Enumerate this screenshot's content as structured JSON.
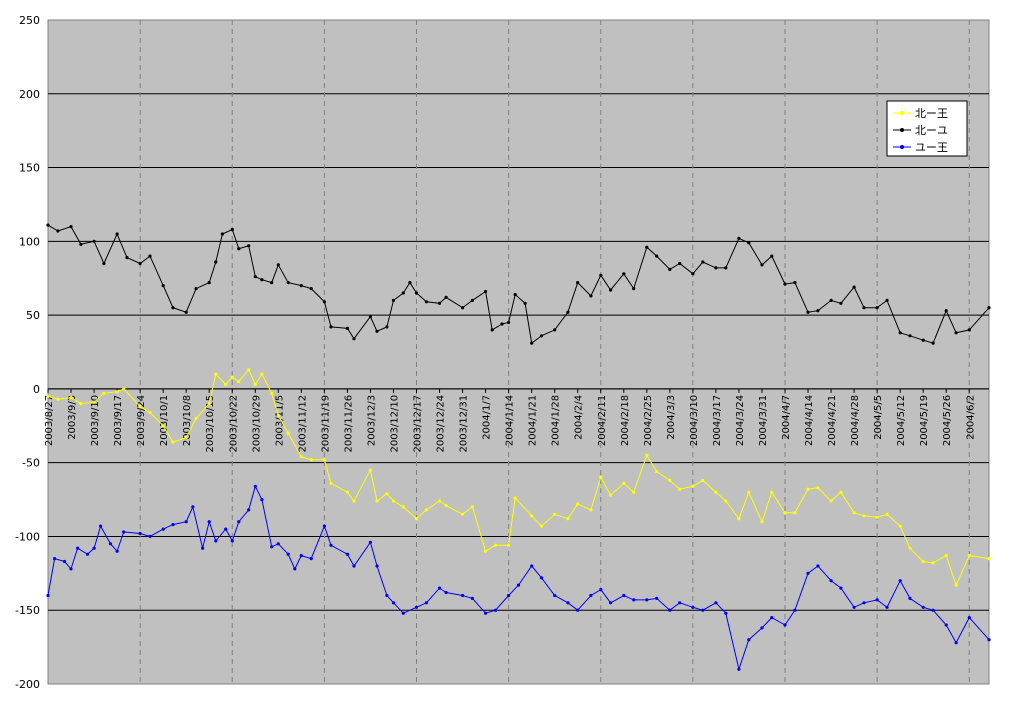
{
  "chart_data": {
    "type": "line",
    "title": "",
    "xlabel": "",
    "ylabel": "",
    "ylim": [
      -200,
      250
    ],
    "yticks": [
      250,
      200,
      150,
      100,
      50,
      0,
      -50,
      -100,
      -150,
      -200
    ],
    "grid": true,
    "legend_position": "top-right",
    "x_labels": [
      "2003/8/27",
      "2003/9/3",
      "2003/9/10",
      "2003/9/17",
      "2003/9/24",
      "2003/10/1",
      "2003/10/8",
      "2003/10/15",
      "2003/10/22",
      "2003/10/29",
      "2003/11/5",
      "2003/11/12",
      "2003/11/19",
      "2003/11/26",
      "2003/12/3",
      "2003/12/10",
      "2003/12/17",
      "2003/12/24",
      "2003/12/31",
      "2004/1/7",
      "2004/1/14",
      "2004/1/21",
      "2004/1/28",
      "2004/2/4",
      "2004/2/11",
      "2004/2/18",
      "2004/2/25",
      "2004/3/3",
      "2004/3/10",
      "2004/3/17",
      "2004/3/24",
      "2004/3/31",
      "2004/4/7",
      "2004/4/14",
      "2004/4/21",
      "2004/4/28",
      "2004/5/5",
      "2004/5/12",
      "2004/5/19",
      "2004/5/26",
      "2004/6/2"
    ],
    "x_start": "2003/8/27",
    "x_end": "2004/6/8",
    "series": [
      {
        "name": "北ー王",
        "color": "#ffff00",
        "points": [
          [
            "2003/8/27",
            -5
          ],
          [
            "2003/8/30",
            -7
          ],
          [
            "2003/9/3",
            -6
          ],
          [
            "2003/9/6",
            -10
          ],
          [
            "2003/9/10",
            -9
          ],
          [
            "2003/9/13",
            -3
          ],
          [
            "2003/9/17",
            -2
          ],
          [
            "2003/9/19",
            0
          ],
          [
            "2003/9/24",
            -12
          ],
          [
            "2003/9/27",
            -16
          ],
          [
            "2003/10/1",
            -25
          ],
          [
            "2003/10/4",
            -36
          ],
          [
            "2003/10/8",
            -33
          ],
          [
            "2003/10/11",
            -20
          ],
          [
            "2003/10/15",
            -10
          ],
          [
            "2003/10/17",
            10
          ],
          [
            "2003/10/20",
            3
          ],
          [
            "2003/10/22",
            8
          ],
          [
            "2003/10/24",
            5
          ],
          [
            "2003/10/27",
            13
          ],
          [
            "2003/10/29",
            3
          ],
          [
            "2003/10/31",
            10
          ],
          [
            "2003/11/3",
            -3
          ],
          [
            "2003/11/5",
            -18
          ],
          [
            "2003/11/8",
            -30
          ],
          [
            "2003/11/12",
            -46
          ],
          [
            "2003/11/15",
            -48
          ],
          [
            "2003/11/19",
            -48
          ],
          [
            "2003/11/21",
            -64
          ],
          [
            "2003/11/26",
            -70
          ],
          [
            "2003/11/28",
            -76
          ],
          [
            "2003/12/3",
            -55
          ],
          [
            "2003/12/5",
            -76
          ],
          [
            "2003/12/8",
            -71
          ],
          [
            "2003/12/10",
            -76
          ],
          [
            "2003/12/13",
            -80
          ],
          [
            "2003/12/17",
            -88
          ],
          [
            "2003/12/20",
            -82
          ],
          [
            "2003/12/24",
            -76
          ],
          [
            "2003/12/26",
            -79
          ],
          [
            "2003/12/31",
            -85
          ],
          [
            "2004/1/3",
            -80
          ],
          [
            "2004/1/7",
            -110
          ],
          [
            "2004/1/10",
            -106
          ],
          [
            "2004/1/14",
            -106
          ],
          [
            "2004/1/16",
            -74
          ],
          [
            "2004/1/21",
            -86
          ],
          [
            "2004/1/24",
            -93
          ],
          [
            "2004/1/28",
            -85
          ],
          [
            "2004/2/1",
            -88
          ],
          [
            "2004/2/4",
            -78
          ],
          [
            "2004/2/8",
            -82
          ],
          [
            "2004/2/11",
            -60
          ],
          [
            "2004/2/14",
            -72
          ],
          [
            "2004/2/18",
            -64
          ],
          [
            "2004/2/21",
            -70
          ],
          [
            "2004/2/25",
            -45
          ],
          [
            "2004/2/28",
            -56
          ],
          [
            "2004/3/3",
            -62
          ],
          [
            "2004/3/6",
            -68
          ],
          [
            "2004/3/10",
            -66
          ],
          [
            "2004/3/13",
            -62
          ],
          [
            "2004/3/17",
            -70
          ],
          [
            "2004/3/20",
            -76
          ],
          [
            "2004/3/24",
            -88
          ],
          [
            "2004/3/27",
            -70
          ],
          [
            "2004/3/31",
            -90
          ],
          [
            "2004/4/3",
            -70
          ],
          [
            "2004/4/7",
            -84
          ],
          [
            "2004/4/10",
            -84
          ],
          [
            "2004/4/14",
            -68
          ],
          [
            "2004/4/17",
            -67
          ],
          [
            "2004/4/21",
            -76
          ],
          [
            "2004/4/24",
            -70
          ],
          [
            "2004/4/28",
            -84
          ],
          [
            "2004/5/1",
            -86
          ],
          [
            "2004/5/5",
            -87
          ],
          [
            "2004/5/8",
            -85
          ],
          [
            "2004/5/12",
            -93
          ],
          [
            "2004/5/15",
            -108
          ],
          [
            "2004/5/19",
            -117
          ],
          [
            "2004/5/22",
            -118
          ],
          [
            "2004/5/26",
            -113
          ],
          [
            "2004/5/29",
            -133
          ],
          [
            "2004/6/2",
            -113
          ],
          [
            "2004/6/8",
            -115
          ]
        ]
      },
      {
        "name": "北ーユ",
        "color": "#000000",
        "points": [
          [
            "2003/8/27",
            111
          ],
          [
            "2003/8/30",
            107
          ],
          [
            "2003/9/3",
            110
          ],
          [
            "2003/9/6",
            98
          ],
          [
            "2003/9/10",
            100
          ],
          [
            "2003/9/13",
            85
          ],
          [
            "2003/9/17",
            105
          ],
          [
            "2003/9/20",
            89
          ],
          [
            "2003/9/24",
            85
          ],
          [
            "2003/9/27",
            90
          ],
          [
            "2003/10/1",
            70
          ],
          [
            "2003/10/4",
            55
          ],
          [
            "2003/10/8",
            52
          ],
          [
            "2003/10/11",
            68
          ],
          [
            "2003/10/15",
            72
          ],
          [
            "2003/10/17",
            86
          ],
          [
            "2003/10/19",
            105
          ],
          [
            "2003/10/22",
            108
          ],
          [
            "2003/10/24",
            95
          ],
          [
            "2003/10/27",
            97
          ],
          [
            "2003/10/29",
            76
          ],
          [
            "2003/10/31",
            74
          ],
          [
            "2003/11/3",
            72
          ],
          [
            "2003/11/5",
            84
          ],
          [
            "2003/11/8",
            72
          ],
          [
            "2003/11/12",
            70
          ],
          [
            "2003/11/15",
            68
          ],
          [
            "2003/11/19",
            59
          ],
          [
            "2003/11/21",
            42
          ],
          [
            "2003/11/26",
            41
          ],
          [
            "2003/11/28",
            34
          ],
          [
            "2003/12/3",
            49
          ],
          [
            "2003/12/5",
            39
          ],
          [
            "2003/12/8",
            42
          ],
          [
            "2003/12/10",
            60
          ],
          [
            "2003/12/13",
            65
          ],
          [
            "2003/12/15",
            72
          ],
          [
            "2003/12/17",
            65
          ],
          [
            "2003/12/20",
            59
          ],
          [
            "2003/12/24",
            58
          ],
          [
            "2003/12/26",
            62
          ],
          [
            "2003/12/31",
            55
          ],
          [
            "2004/1/3",
            60
          ],
          [
            "2004/1/7",
            66
          ],
          [
            "2004/1/9",
            40
          ],
          [
            "2004/1/12",
            44
          ],
          [
            "2004/1/14",
            45
          ],
          [
            "2004/1/16",
            64
          ],
          [
            "2004/1/19",
            58
          ],
          [
            "2004/1/21",
            31
          ],
          [
            "2004/1/24",
            36
          ],
          [
            "2004/1/28",
            40
          ],
          [
            "2004/2/1",
            52
          ],
          [
            "2004/2/4",
            72
          ],
          [
            "2004/2/8",
            63
          ],
          [
            "2004/2/11",
            77
          ],
          [
            "2004/2/14",
            67
          ],
          [
            "2004/2/18",
            78
          ],
          [
            "2004/2/21",
            68
          ],
          [
            "2004/2/25",
            96
          ],
          [
            "2004/2/28",
            90
          ],
          [
            "2004/3/3",
            81
          ],
          [
            "2004/3/6",
            85
          ],
          [
            "2004/3/10",
            78
          ],
          [
            "2004/3/13",
            86
          ],
          [
            "2004/3/17",
            82
          ],
          [
            "2004/3/20",
            82
          ],
          [
            "2004/3/24",
            102
          ],
          [
            "2004/3/27",
            99
          ],
          [
            "2004/3/31",
            84
          ],
          [
            "2004/4/3",
            90
          ],
          [
            "2004/4/7",
            71
          ],
          [
            "2004/4/10",
            72
          ],
          [
            "2004/4/14",
            52
          ],
          [
            "2004/4/17",
            53
          ],
          [
            "2004/4/21",
            60
          ],
          [
            "2004/4/24",
            58
          ],
          [
            "2004/4/28",
            69
          ],
          [
            "2004/5/1",
            55
          ],
          [
            "2004/5/5",
            55
          ],
          [
            "2004/5/8",
            60
          ],
          [
            "2004/5/12",
            38
          ],
          [
            "2004/5/15",
            36
          ],
          [
            "2004/5/19",
            33
          ],
          [
            "2004/5/22",
            31
          ],
          [
            "2004/5/26",
            53
          ],
          [
            "2004/5/29",
            38
          ],
          [
            "2004/6/2",
            40
          ],
          [
            "2004/6/8",
            55
          ]
        ]
      },
      {
        "name": "ユー王",
        "color": "#0000ff",
        "points": [
          [
            "2003/8/27",
            -140
          ],
          [
            "2003/8/29",
            -115
          ],
          [
            "2003/9/1",
            -117
          ],
          [
            "2003/9/3",
            -122
          ],
          [
            "2003/9/5",
            -108
          ],
          [
            "2003/9/8",
            -112
          ],
          [
            "2003/9/10",
            -108
          ],
          [
            "2003/9/12",
            -93
          ],
          [
            "2003/9/15",
            -105
          ],
          [
            "2003/9/17",
            -110
          ],
          [
            "2003/9/19",
            -97
          ],
          [
            "2003/9/24",
            -98
          ],
          [
            "2003/9/27",
            -100
          ],
          [
            "2003/10/1",
            -95
          ],
          [
            "2003/10/4",
            -92
          ],
          [
            "2003/10/8",
            -90
          ],
          [
            "2003/10/10",
            -80
          ],
          [
            "2003/10/13",
            -108
          ],
          [
            "2003/10/15",
            -90
          ],
          [
            "2003/10/17",
            -103
          ],
          [
            "2003/10/20",
            -95
          ],
          [
            "2003/10/22",
            -103
          ],
          [
            "2003/10/24",
            -90
          ],
          [
            "2003/10/27",
            -82
          ],
          [
            "2003/10/29",
            -66
          ],
          [
            "2003/10/31",
            -75
          ],
          [
            "2003/11/3",
            -107
          ],
          [
            "2003/11/5",
            -105
          ],
          [
            "2003/11/8",
            -112
          ],
          [
            "2003/11/10",
            -122
          ],
          [
            "2003/11/12",
            -113
          ],
          [
            "2003/11/15",
            -115
          ],
          [
            "2003/11/19",
            -93
          ],
          [
            "2003/11/21",
            -106
          ],
          [
            "2003/11/26",
            -112
          ],
          [
            "2003/11/28",
            -120
          ],
          [
            "2003/12/3",
            -104
          ],
          [
            "2003/12/5",
            -120
          ],
          [
            "2003/12/8",
            -140
          ],
          [
            "2003/12/10",
            -145
          ],
          [
            "2003/12/13",
            -152
          ],
          [
            "2003/12/17",
            -148
          ],
          [
            "2003/12/20",
            -145
          ],
          [
            "2003/12/24",
            -135
          ],
          [
            "2003/12/26",
            -138
          ],
          [
            "2003/12/31",
            -140
          ],
          [
            "2004/1/3",
            -142
          ],
          [
            "2004/1/7",
            -152
          ],
          [
            "2004/1/10",
            -150
          ],
          [
            "2004/1/14",
            -140
          ],
          [
            "2004/1/17",
            -133
          ],
          [
            "2004/1/21",
            -120
          ],
          [
            "2004/1/24",
            -128
          ],
          [
            "2004/1/28",
            -140
          ],
          [
            "2004/2/1",
            -145
          ],
          [
            "2004/2/4",
            -150
          ],
          [
            "2004/2/8",
            -140
          ],
          [
            "2004/2/11",
            -136
          ],
          [
            "2004/2/14",
            -145
          ],
          [
            "2004/2/18",
            -140
          ],
          [
            "2004/2/21",
            -143
          ],
          [
            "2004/2/25",
            -143
          ],
          [
            "2004/2/28",
            -142
          ],
          [
            "2004/3/3",
            -150
          ],
          [
            "2004/3/6",
            -145
          ],
          [
            "2004/3/10",
            -148
          ],
          [
            "2004/3/13",
            -150
          ],
          [
            "2004/3/17",
            -145
          ],
          [
            "2004/3/20",
            -152
          ],
          [
            "2004/3/24",
            -190
          ],
          [
            "2004/3/27",
            -170
          ],
          [
            "2004/3/31",
            -162
          ],
          [
            "2004/4/3",
            -155
          ],
          [
            "2004/4/7",
            -160
          ],
          [
            "2004/4/10",
            -150
          ],
          [
            "2004/4/14",
            -125
          ],
          [
            "2004/4/17",
            -120
          ],
          [
            "2004/4/21",
            -130
          ],
          [
            "2004/4/24",
            -135
          ],
          [
            "2004/4/28",
            -148
          ],
          [
            "2004/5/1",
            -145
          ],
          [
            "2004/5/5",
            -143
          ],
          [
            "2004/5/8",
            -148
          ],
          [
            "2004/5/12",
            -130
          ],
          [
            "2004/5/15",
            -142
          ],
          [
            "2004/5/19",
            -148
          ],
          [
            "2004/5/22",
            -150
          ],
          [
            "2004/5/26",
            -160
          ],
          [
            "2004/5/29",
            -172
          ],
          [
            "2004/6/2",
            -155
          ],
          [
            "2004/6/8",
            -170
          ]
        ]
      }
    ]
  }
}
